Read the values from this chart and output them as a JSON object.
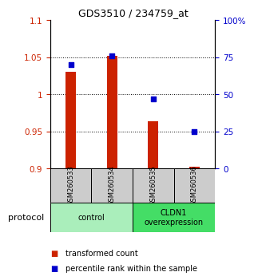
{
  "title": "GDS3510 / 234759_at",
  "samples": [
    "GSM260533",
    "GSM260534",
    "GSM260535",
    "GSM260536"
  ],
  "red_values": [
    1.03,
    1.052,
    0.963,
    0.902
  ],
  "blue_pct": [
    70,
    76,
    47,
    25
  ],
  "ylim_left": [
    0.9,
    1.1
  ],
  "ylim_right": [
    0,
    100
  ],
  "yticks_left": [
    0.9,
    0.95,
    1.0,
    1.05,
    1.1
  ],
  "yticks_right": [
    0,
    25,
    50,
    75,
    100
  ],
  "ytick_labels_left": [
    "0.9",
    "0.95",
    "1",
    "1.05",
    "1.1"
  ],
  "ytick_labels_right": [
    "0",
    "25",
    "50",
    "75",
    "100%"
  ],
  "groups": [
    {
      "label": "control",
      "color": "#aaeebb"
    },
    {
      "label": "CLDN1\noverexpression",
      "color": "#44dd66"
    }
  ],
  "protocol_label": "protocol",
  "legend_red": "transformed count",
  "legend_blue": "percentile rank within the sample",
  "bar_color": "#cc2200",
  "dot_color": "#0000cc",
  "bar_width": 0.25,
  "dot_size": 22,
  "background_color": "#ffffff",
  "tick_label_color_left": "#cc2200",
  "tick_label_color_right": "#0000cc",
  "sample_box_color": "#cccccc",
  "title_fontsize": 9,
  "tick_fontsize": 7.5,
  "sample_fontsize": 6,
  "group_fontsize": 7,
  "legend_fontsize": 7,
  "protocol_fontsize": 8
}
